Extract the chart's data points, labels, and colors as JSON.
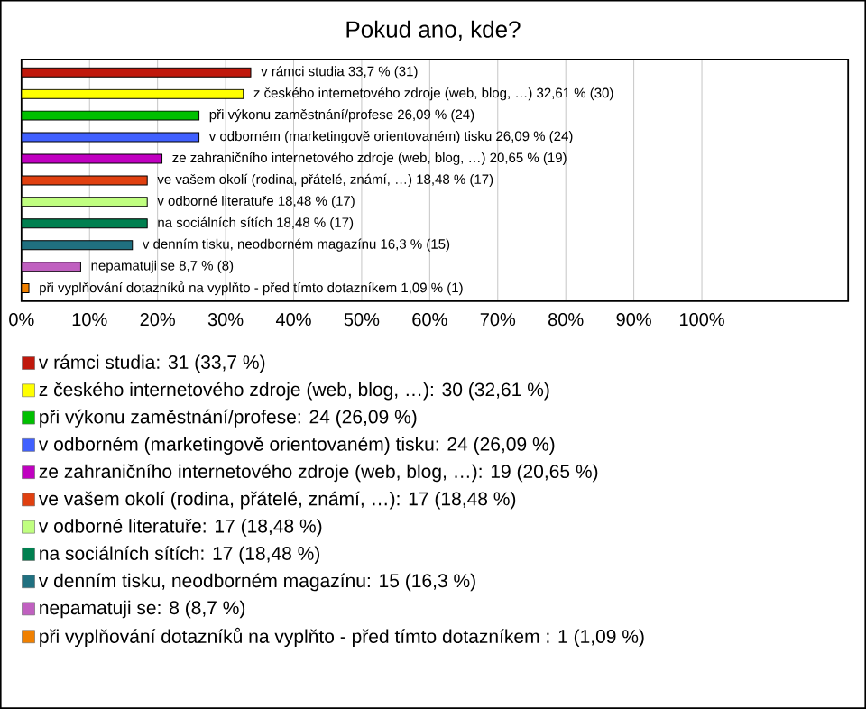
{
  "chart_data": {
    "type": "bar",
    "orientation": "horizontal",
    "title": "Pokud ano, kde?",
    "categories": [
      null,
      null,
      null,
      null,
      null,
      null,
      null,
      null,
      null,
      null,
      null
    ],
    "series": [
      {
        "name": "v rámci studia: 31 (33,7 %)",
        "color": "#c0180c",
        "values": [
          33.7,
          null,
          null,
          null,
          null,
          null,
          null,
          null,
          null,
          null,
          null
        ],
        "value_labels": [
          "v rámci studia 33,7 % (31)",
          null,
          null,
          null,
          null,
          null,
          null,
          null,
          null,
          null,
          null
        ]
      },
      {
        "name": "z českého internetového zdroje (web, blog, …): 30 (32,61 %)",
        "color": "#ffff00",
        "values": [
          null,
          32.61,
          null,
          null,
          null,
          null,
          null,
          null,
          null,
          null,
          null
        ],
        "value_labels": [
          null,
          "z českého internetového zdroje (web, blog, …) 32,61 % (30)",
          null,
          null,
          null,
          null,
          null,
          null,
          null,
          null,
          null
        ]
      },
      {
        "name": "při výkonu zaměstnání/profese: 24 (26,09 %)",
        "color": "#00c000",
        "values": [
          null,
          null,
          26.09,
          null,
          null,
          null,
          null,
          null,
          null,
          null,
          null
        ],
        "value_labels": [
          null,
          null,
          "při výkonu zaměstnání/profese 26,09 % (24)",
          null,
          null,
          null,
          null,
          null,
          null,
          null,
          null
        ]
      },
      {
        "name": "v odborném (marketingově orientovaném) tisku: 24 (26,09 %)",
        "color": "#4060ff",
        "values": [
          null,
          null,
          null,
          26.09,
          null,
          null,
          null,
          null,
          null,
          null,
          null
        ],
        "value_labels": [
          null,
          null,
          null,
          "v odborném (marketingově orientovaném) tisku 26,09 % (24)",
          null,
          null,
          null,
          null,
          null,
          null,
          null
        ]
      },
      {
        "name": "ze zahraničního internetového zdroje (web, blog, …): 19 (20,65 %)",
        "color": "#c000c0",
        "values": [
          null,
          null,
          null,
          null,
          20.65,
          null,
          null,
          null,
          null,
          null,
          null
        ],
        "value_labels": [
          null,
          null,
          null,
          null,
          "ze zahraničního internetového zdroje (web, blog, …) 20,65 % (19)",
          null,
          null,
          null,
          null,
          null,
          null
        ]
      },
      {
        "name": "ve vašem okolí (rodina, přátelé, známí, …): 17 (18,48 %)",
        "color": "#e04010",
        "values": [
          null,
          null,
          null,
          null,
          null,
          18.48,
          null,
          null,
          null,
          null,
          null
        ],
        "value_labels": [
          null,
          null,
          null,
          null,
          null,
          "ve vašem okolí (rodina, přátelé, známí, …) 18,48 % (17)",
          null,
          null,
          null,
          null,
          null
        ]
      },
      {
        "name": "v odborné literatuře: 17 (18,48 %)",
        "color": "#c0ff80",
        "values": [
          null,
          null,
          null,
          null,
          null,
          null,
          18.48,
          null,
          null,
          null,
          null
        ],
        "value_labels": [
          null,
          null,
          null,
          null,
          null,
          null,
          "v odborné literatuře 18,48 % (17)",
          null,
          null,
          null,
          null
        ]
      },
      {
        "name": "na sociálních sítích: 17 (18,48 %)",
        "color": "#008050",
        "values": [
          null,
          null,
          null,
          null,
          null,
          null,
          null,
          18.48,
          null,
          null,
          null
        ],
        "value_labels": [
          null,
          null,
          null,
          null,
          null,
          null,
          null,
          "na sociálních sítích 18,48 % (17)",
          null,
          null,
          null
        ]
      },
      {
        "name": "v denním tisku, neodborném magazínu: 15 (16,3 %)",
        "color": "#207080",
        "values": [
          null,
          null,
          null,
          null,
          null,
          null,
          null,
          null,
          16.3,
          null,
          null
        ],
        "value_labels": [
          null,
          null,
          null,
          null,
          null,
          null,
          null,
          null,
          "v denním tisku, neodborném magazínu 16,3 % (15)",
          null,
          null
        ]
      },
      {
        "name": "nepamatuji se: 8 (8,7 %)",
        "color": "#c060c0",
        "values": [
          null,
          null,
          null,
          null,
          null,
          null,
          null,
          null,
          null,
          8.7,
          null
        ],
        "value_labels": [
          null,
          null,
          null,
          null,
          null,
          null,
          null,
          null,
          null,
          "nepamatuji se 8,7 % (8)",
          null
        ]
      },
      {
        "name": "při vyplňování dotazníků na vyplňto - před tímto dotazníkem : 1 (1,09 %)",
        "color": "#f08000",
        "values": [
          null,
          null,
          null,
          null,
          null,
          null,
          null,
          null,
          null,
          null,
          1.09
        ],
        "value_labels": [
          null,
          null,
          null,
          null,
          null,
          null,
          null,
          null,
          null,
          null,
          "při vyplňování dotazníků na vyplňto - před tímto dotazníkem  1,09 % (1)"
        ]
      }
    ],
    "xlim": [
      0,
      121.5
    ],
    "xticks": [
      {
        "value": 0,
        "label": "0%"
      },
      {
        "value": 10,
        "label": "10%"
      },
      {
        "value": 20,
        "label": "20%"
      },
      {
        "value": 30,
        "label": "30%"
      },
      {
        "value": 40,
        "label": "40%"
      },
      {
        "value": 50,
        "label": "50%"
      },
      {
        "value": 60,
        "label": "60%"
      },
      {
        "value": 70,
        "label": "70%"
      },
      {
        "value": 80,
        "label": "80%"
      },
      {
        "value": 90,
        "label": "90%"
      },
      {
        "value": 100,
        "label": "100%"
      }
    ],
    "grid": "x",
    "legend": "bottom",
    "tick_labels": "x"
  }
}
